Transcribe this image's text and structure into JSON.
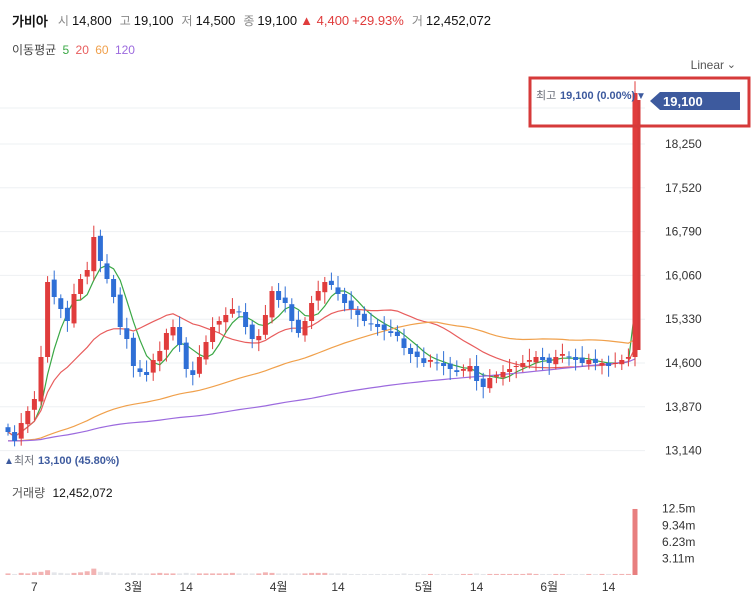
{
  "header": {
    "name": "가비아",
    "open_label": "시",
    "open": "14,800",
    "high_label": "고",
    "high": "19,100",
    "low_label": "저",
    "low": "14,500",
    "close_label": "종",
    "close": "19,100",
    "change": "▲ 4,400",
    "change_pct": "+29.93%",
    "volume_label": "거",
    "volume": "12,452,072"
  },
  "ma_legend": {
    "label": "이동평균",
    "items": [
      {
        "period": "5",
        "color": "#3aa845"
      },
      {
        "period": "20",
        "color": "#e85d5d"
      },
      {
        "period": "60",
        "color": "#f0a04b"
      },
      {
        "period": "120",
        "color": "#9c6ade"
      }
    ]
  },
  "scale_button": {
    "label": "Linear",
    "chevron": "chevron-down-icon"
  },
  "colors": {
    "up": "#e03c3c",
    "down": "#2f6fd6",
    "current_price_tag": "#3d5a9e",
    "highlight_box": "#d63a3a",
    "grid": "#eef0f3"
  },
  "chart_data": {
    "type": "candlestick",
    "y_axis": {
      "ticks": [
        13140,
        13870,
        14600,
        15330,
        16060,
        16790,
        17520,
        18250
      ],
      "range": [
        12900,
        19350
      ]
    },
    "x_axis": {
      "labels": [
        {
          "text": "7",
          "day_index": 4
        },
        {
          "text": "3월",
          "day_index": 19
        },
        {
          "text": "14",
          "day_index": 27
        },
        {
          "text": "4월",
          "day_index": 41
        },
        {
          "text": "14",
          "day_index": 50
        },
        {
          "text": "5월",
          "day_index": 63
        },
        {
          "text": "14",
          "day_index": 71
        },
        {
          "text": "6월",
          "day_index": 82
        },
        {
          "text": "14",
          "day_index": 91
        }
      ]
    },
    "closes": [
      13450,
      13300,
      13600,
      13800,
      14000,
      14700,
      15950,
      15700,
      15500,
      15300,
      15750,
      16000,
      16150,
      16700,
      16300,
      16000,
      15700,
      15200,
      15000,
      14550,
      14450,
      14400,
      14650,
      14800,
      15100,
      15200,
      14900,
      14500,
      14400,
      14700,
      14950,
      15200,
      15300,
      15400,
      15500,
      15450,
      15200,
      15000,
      15050,
      15400,
      15800,
      15650,
      15600,
      15300,
      15100,
      15300,
      15600,
      15800,
      15950,
      15900,
      15750,
      15600,
      15500,
      15400,
      15300,
      15250,
      15200,
      15150,
      15100,
      15050,
      14850,
      14750,
      14700,
      14600,
      14650,
      14600,
      14550,
      14500,
      14450,
      14500,
      14550,
      14300,
      14200,
      14350,
      14400,
      14450,
      14500,
      14550,
      14600,
      14650,
      14700,
      14650,
      14600,
      14700,
      14750,
      14700,
      14650,
      14600,
      14650,
      14600,
      14600,
      14550,
      14600,
      14650,
      14700,
      19100
    ],
    "last_close": 19100,
    "high_marker": {
      "label": "최고",
      "value": "19,100 (0.00%)",
      "arrow": "▼"
    },
    "low_marker": {
      "label": "최저",
      "value": "13,100 (45.80%)",
      "arrow": "▲"
    },
    "current_price_label": "19,100",
    "moving_averages": [
      5,
      20,
      60,
      120
    ]
  },
  "volume_panel": {
    "title_label": "거래량",
    "title_value": "12,452,072",
    "ticks": [
      "12.5m",
      "9.34m",
      "6.23m",
      "3.11m"
    ],
    "tick_values": [
      12.5,
      9.34,
      6.23,
      3.11
    ],
    "volumes_m": [
      0.3,
      0.2,
      0.4,
      0.3,
      0.5,
      0.6,
      0.9,
      0.5,
      0.4,
      0.3,
      0.4,
      0.5,
      0.7,
      1.2,
      0.6,
      0.5,
      0.4,
      0.3,
      0.3,
      0.4,
      0.3,
      0.3,
      0.3,
      0.4,
      0.3,
      0.3,
      0.3,
      0.4,
      0.3,
      0.3,
      0.3,
      0.3,
      0.3,
      0.3,
      0.4,
      0.3,
      0.3,
      0.3,
      0.3,
      0.5,
      0.4,
      0.3,
      0.3,
      0.3,
      0.3,
      0.3,
      0.4,
      0.4,
      0.4,
      0.3,
      0.3,
      0.3,
      0.2,
      0.2,
      0.2,
      0.2,
      0.2,
      0.2,
      0.2,
      0.2,
      0.3,
      0.2,
      0.2,
      0.2,
      0.2,
      0.2,
      0.2,
      0.2,
      0.2,
      0.2,
      0.2,
      0.3,
      0.2,
      0.2,
      0.2,
      0.2,
      0.2,
      0.2,
      0.2,
      0.3,
      0.2,
      0.2,
      0.2,
      0.2,
      0.2,
      0.2,
      0.2,
      0.2,
      0.2,
      0.2,
      0.2,
      0.2,
      0.2,
      0.2,
      0.2,
      12.45
    ]
  }
}
